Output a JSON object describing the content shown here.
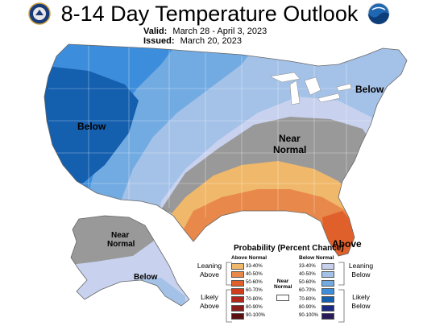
{
  "header": {
    "title": "8-14 Day Temperature Outlook",
    "valid_label": "Valid:",
    "valid_value": "March 28 - April 3, 2023",
    "issued_label": "Issued:",
    "issued_value": "March 20, 2023"
  },
  "logos": {
    "left": "doc-seal-icon",
    "right": "noaa-logo-icon",
    "right_text": "NOAA"
  },
  "map": {
    "labels": {
      "west_below": "Below",
      "northeast_below": "Below",
      "near_normal_line1": "Near",
      "near_normal_line2": "Normal",
      "florida_above": "Above",
      "alaska_near_line1": "Near",
      "alaska_near_line2": "Normal",
      "alaska_below": "Below"
    }
  },
  "legend": {
    "title": "Probability (Percent Chance)",
    "above_header": "Above Normal",
    "below_header": "Below Normal",
    "near_header_line1": "Near",
    "near_header_line2": "Normal",
    "leaning_above_1": "Leaning",
    "leaning_above_2": "Above",
    "likely_above_1": "Likely",
    "likely_above_2": "Above",
    "leaning_below_1": "Leaning",
    "leaning_below_2": "Below",
    "likely_below_1": "Likely",
    "likely_below_2": "Below",
    "above_rows": [
      {
        "pct": "33-40%",
        "color": "#f0b86a"
      },
      {
        "pct": "40-50%",
        "color": "#e8884a"
      },
      {
        "pct": "50-60%",
        "color": "#e0602c"
      },
      {
        "pct": "60-70%",
        "color": "#d03c1c"
      },
      {
        "pct": "70-80%",
        "color": "#b0261a"
      },
      {
        "pct": "80-90%",
        "color": "#8a1c1c"
      },
      {
        "pct": "90-100%",
        "color": "#5a1010"
      }
    ],
    "below_rows": [
      {
        "pct": "33-40%",
        "color": "#c8d2ee"
      },
      {
        "pct": "40-50%",
        "color": "#a4c2e8"
      },
      {
        "pct": "50-60%",
        "color": "#72abe2"
      },
      {
        "pct": "60-70%",
        "color": "#3c8edc"
      },
      {
        "pct": "70-80%",
        "color": "#145fae"
      },
      {
        "pct": "80-90%",
        "color": "#1c2a86"
      },
      {
        "pct": "90-100%",
        "color": "#2a1a5a"
      }
    ],
    "near_color": "#999999"
  }
}
